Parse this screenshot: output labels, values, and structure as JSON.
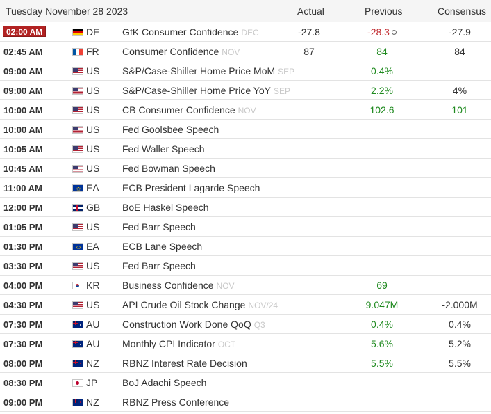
{
  "header": {
    "date": "Tuesday November 28 2023",
    "actual": "Actual",
    "previous": "Previous",
    "consensus": "Consensus"
  },
  "colors": {
    "positive": "#1f8a1f",
    "negative": "#c0282d",
    "live_badge": "#b22222"
  },
  "events": [
    {
      "time": "02:00 AM",
      "live": true,
      "flag": "de-flag-icon",
      "country": "DE",
      "event": "GfK Consumer Confidence",
      "period": "DEC",
      "actual": "-27.8",
      "actual_color": "dark",
      "previous": "-28.3",
      "previous_color": "red",
      "revised": true,
      "consensus": "-27.9"
    },
    {
      "time": "02:45 AM",
      "flag": "fr-flag-icon",
      "country": "FR",
      "event": "Consumer Confidence",
      "period": "NOV",
      "actual": "87",
      "actual_color": "dark",
      "previous": "84",
      "previous_color": "green",
      "consensus": "84"
    },
    {
      "time": "09:00 AM",
      "flag": "us-flag-icon",
      "country": "US",
      "event": "S&P/Case-Shiller Home Price MoM",
      "period": "SEP",
      "actual": "",
      "previous": "0.4%",
      "previous_color": "green",
      "consensus": ""
    },
    {
      "time": "09:00 AM",
      "flag": "us-flag-icon",
      "country": "US",
      "event": "S&P/Case-Shiller Home Price YoY",
      "period": "SEP",
      "actual": "",
      "previous": "2.2%",
      "previous_color": "green",
      "consensus": "4%"
    },
    {
      "time": "10:00 AM",
      "flag": "us-flag-icon",
      "country": "US",
      "event": "CB Consumer Confidence",
      "period": "NOV",
      "actual": "",
      "previous": "102.6",
      "previous_color": "green",
      "consensus": "101",
      "consensus_color": "green"
    },
    {
      "time": "10:00 AM",
      "flag": "us-flag-icon",
      "country": "US",
      "event": "Fed Goolsbee Speech",
      "period": "",
      "actual": "",
      "previous": "",
      "consensus": ""
    },
    {
      "time": "10:05 AM",
      "flag": "us-flag-icon",
      "country": "US",
      "event": "Fed Waller Speech",
      "period": "",
      "actual": "",
      "previous": "",
      "consensus": ""
    },
    {
      "time": "10:45 AM",
      "flag": "us-flag-icon",
      "country": "US",
      "event": "Fed Bowman Speech",
      "period": "",
      "actual": "",
      "previous": "",
      "consensus": ""
    },
    {
      "time": "11:00 AM",
      "flag": "ea-flag-icon",
      "country": "EA",
      "event": "ECB President Lagarde Speech",
      "period": "",
      "actual": "",
      "previous": "",
      "consensus": ""
    },
    {
      "time": "12:00 PM",
      "flag": "gb-flag-icon",
      "country": "GB",
      "event": "BoE Haskel Speech",
      "period": "",
      "actual": "",
      "previous": "",
      "consensus": ""
    },
    {
      "time": "01:05 PM",
      "flag": "us-flag-icon",
      "country": "US",
      "event": "Fed Barr Speech",
      "period": "",
      "actual": "",
      "previous": "",
      "consensus": ""
    },
    {
      "time": "01:30 PM",
      "flag": "ea-flag-icon",
      "country": "EA",
      "event": "ECB Lane Speech",
      "period": "",
      "actual": "",
      "previous": "",
      "consensus": ""
    },
    {
      "time": "03:30 PM",
      "flag": "us-flag-icon",
      "country": "US",
      "event": "Fed Barr Speech",
      "period": "",
      "actual": "",
      "previous": "",
      "consensus": ""
    },
    {
      "time": "04:00 PM",
      "flag": "kr-flag-icon",
      "country": "KR",
      "event": "Business Confidence",
      "period": "NOV",
      "actual": "",
      "previous": "69",
      "previous_color": "green",
      "consensus": ""
    },
    {
      "time": "04:30 PM",
      "flag": "us-flag-icon",
      "country": "US",
      "event": "API Crude Oil Stock Change",
      "period": "NOV/24",
      "actual": "",
      "previous": "9.047M",
      "previous_color": "green",
      "consensus": "-2.000M"
    },
    {
      "time": "07:30 PM",
      "flag": "au-flag-icon",
      "country": "AU",
      "event": "Construction Work Done QoQ",
      "period": "Q3",
      "actual": "",
      "previous": "0.4%",
      "previous_color": "green",
      "consensus": "0.4%"
    },
    {
      "time": "07:30 PM",
      "flag": "au-flag-icon",
      "country": "AU",
      "event": "Monthly CPI Indicator",
      "period": "OCT",
      "actual": "",
      "previous": "5.6%",
      "previous_color": "green",
      "consensus": "5.2%"
    },
    {
      "time": "08:00 PM",
      "flag": "nz-flag-icon",
      "country": "NZ",
      "event": "RBNZ Interest Rate Decision",
      "period": "",
      "actual": "",
      "previous": "5.5%",
      "previous_color": "green",
      "consensus": "5.5%"
    },
    {
      "time": "08:30 PM",
      "flag": "jp-flag-icon",
      "country": "JP",
      "event": "BoJ Adachi Speech",
      "period": "",
      "actual": "",
      "previous": "",
      "consensus": ""
    },
    {
      "time": "09:00 PM",
      "flag": "nz-flag-icon",
      "country": "NZ",
      "event": "RBNZ Press Conference",
      "period": "",
      "actual": "",
      "previous": "",
      "consensus": ""
    }
  ]
}
